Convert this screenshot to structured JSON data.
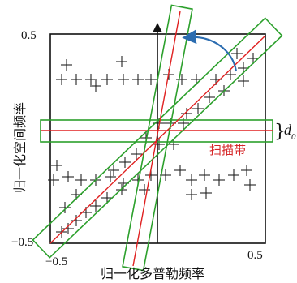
{
  "axes": {
    "xlabel": "归一化多普勒频率",
    "ylabel": "归一化空间频率",
    "x_ticks": [
      "−0.5",
      "0.5"
    ],
    "y_ticks": [
      "0.5",
      "−0.5"
    ]
  },
  "annotations": {
    "scan_band_label": "扫描带",
    "width_symbol": "d",
    "width_subscript": "0",
    "width_brace": "}"
  },
  "colors": {
    "band_outline": "#2ca02c",
    "center_line": "#e02020",
    "scan_band_text": "#d62728",
    "rotation_arrow": "#2b6cb0",
    "plus_marker": "#222222",
    "frame": "#111111"
  },
  "icons": {
    "rotation_arrow": "curved-arrow-icon",
    "axis_arrow": "up-arrow-icon",
    "data_marker": "plus-icon"
  }
}
